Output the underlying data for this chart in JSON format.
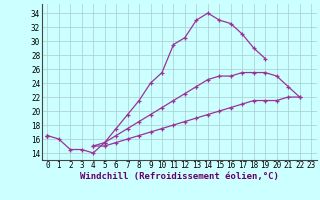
{
  "x": [
    0,
    1,
    2,
    3,
    4,
    5,
    6,
    7,
    8,
    9,
    10,
    11,
    12,
    13,
    14,
    15,
    16,
    17,
    18,
    19,
    20,
    21,
    22,
    23
  ],
  "line1": [
    16.5,
    16.0,
    14.5,
    14.5,
    14.0,
    15.5,
    17.5,
    19.5,
    21.5,
    24.0,
    25.5,
    29.5,
    30.5,
    33.0,
    34.0,
    33.0,
    32.5,
    31.0,
    29.0,
    27.5,
    null,
    null,
    null,
    null
  ],
  "line2": [
    16.5,
    null,
    null,
    null,
    15.0,
    15.5,
    16.5,
    17.5,
    18.5,
    19.5,
    20.5,
    21.5,
    22.5,
    23.5,
    24.5,
    25.0,
    25.0,
    25.5,
    25.5,
    25.5,
    25.0,
    23.5,
    22.0,
    null
  ],
  "line3": [
    16.5,
    null,
    null,
    null,
    15.0,
    15.0,
    15.5,
    16.0,
    16.5,
    17.0,
    17.5,
    18.0,
    18.5,
    19.0,
    19.5,
    20.0,
    20.5,
    21.0,
    21.5,
    21.5,
    21.5,
    22.0,
    22.0,
    null
  ],
  "line_color": "#993399",
  "bg_color": "#ccffff",
  "grid_color": "#aacccc",
  "xlabel": "Windchill (Refroidissement éolien,°C)",
  "ylim": [
    13,
    35
  ],
  "xlim": [
    -0.5,
    23.5
  ],
  "yticks": [
    14,
    16,
    18,
    20,
    22,
    24,
    26,
    28,
    30,
    32,
    34
  ],
  "xticks": [
    0,
    1,
    2,
    3,
    4,
    5,
    6,
    7,
    8,
    9,
    10,
    11,
    12,
    13,
    14,
    15,
    16,
    17,
    18,
    19,
    20,
    21,
    22,
    23
  ],
  "xlabel_fontsize": 6.5,
  "tick_fontsize": 5.5
}
